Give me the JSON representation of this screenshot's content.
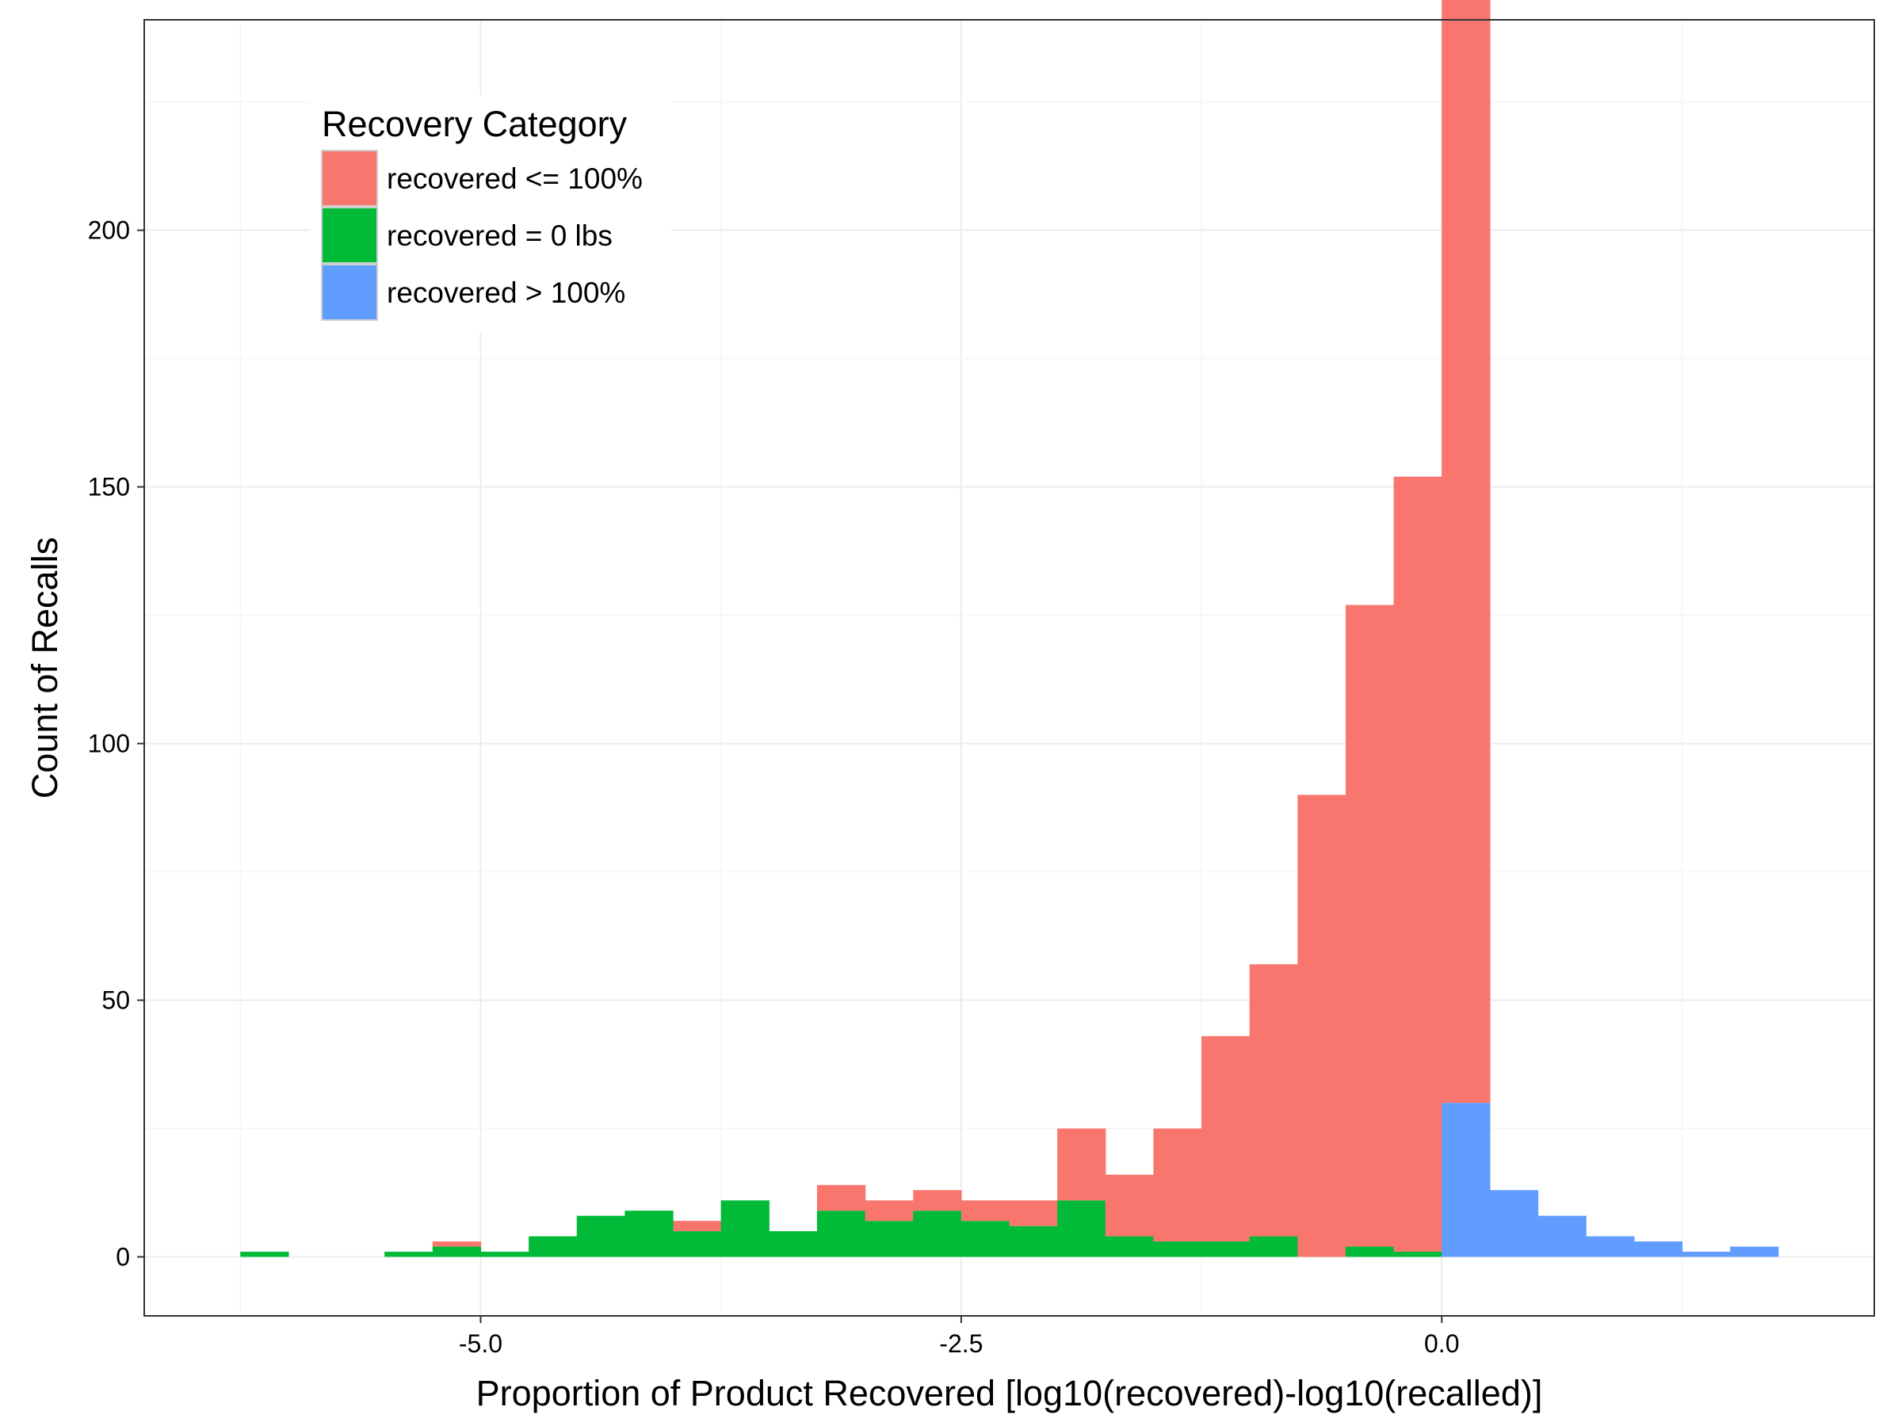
{
  "chart_data": {
    "type": "bar",
    "stacked": true,
    "histogram": true,
    "bin_width": 0.25,
    "xlabel": "Proportion of Product Recovered [log10(recovered)-log10(recalled)]",
    "ylabel": "Count of Recalls",
    "xlim": [
      -6.75,
      2.25
    ],
    "ylim": [
      -11.5,
      241
    ],
    "x_ticks": [
      -5.0,
      -2.5,
      0.0
    ],
    "x_tick_labels": [
      "-5.0",
      "-2.5",
      "0.0"
    ],
    "y_ticks": [
      0,
      50,
      100,
      150,
      200
    ],
    "y_tick_labels": [
      "0",
      "50",
      "100",
      "150",
      "200"
    ],
    "grid": true,
    "legend": {
      "title": "Recovery Category",
      "placement": "top-left"
    },
    "stack_order": [
      "recovered <= 100%",
      "recovered = 0 lbs",
      "recovered > 100%"
    ],
    "series": [
      {
        "name": "recovered <= 100%",
        "color": "#F8766D",
        "bins": [
          {
            "x0": -5.25,
            "value": 1
          },
          {
            "x0": -4.0,
            "value": 2
          },
          {
            "x0": -3.25,
            "value": 5
          },
          {
            "x0": -3.0,
            "value": 4
          },
          {
            "x0": -2.75,
            "value": 4
          },
          {
            "x0": -2.5,
            "value": 4
          },
          {
            "x0": -2.25,
            "value": 5
          },
          {
            "x0": -2.0,
            "value": 14
          },
          {
            "x0": -1.75,
            "value": 12
          },
          {
            "x0": -1.5,
            "value": 22
          },
          {
            "x0": -1.25,
            "value": 40
          },
          {
            "x0": -1.0,
            "value": 53
          },
          {
            "x0": -0.75,
            "value": 90
          },
          {
            "x0": -0.5,
            "value": 125
          },
          {
            "x0": -0.25,
            "value": 151
          },
          {
            "x0": 0.0,
            "value": 230
          }
        ]
      },
      {
        "name": "recovered = 0 lbs",
        "color": "#00BA38",
        "bins": [
          {
            "x0": -6.25,
            "value": 1
          },
          {
            "x0": -5.5,
            "value": 1
          },
          {
            "x0": -5.25,
            "value": 2
          },
          {
            "x0": -5.0,
            "value": 1
          },
          {
            "x0": -4.75,
            "value": 4
          },
          {
            "x0": -4.5,
            "value": 8
          },
          {
            "x0": -4.25,
            "value": 9
          },
          {
            "x0": -4.0,
            "value": 5
          },
          {
            "x0": -3.75,
            "value": 11
          },
          {
            "x0": -3.5,
            "value": 5
          },
          {
            "x0": -3.25,
            "value": 9
          },
          {
            "x0": -3.0,
            "value": 7
          },
          {
            "x0": -2.75,
            "value": 9
          },
          {
            "x0": -2.5,
            "value": 7
          },
          {
            "x0": -2.25,
            "value": 6
          },
          {
            "x0": -2.0,
            "value": 11
          },
          {
            "x0": -1.75,
            "value": 4
          },
          {
            "x0": -1.5,
            "value": 3
          },
          {
            "x0": -1.25,
            "value": 3
          },
          {
            "x0": -1.0,
            "value": 4
          },
          {
            "x0": -0.5,
            "value": 2
          },
          {
            "x0": -0.25,
            "value": 1
          }
        ]
      },
      {
        "name": "recovered > 100%",
        "color": "#619CFF",
        "bins": [
          {
            "x0": 0.0,
            "value": 30
          },
          {
            "x0": 0.25,
            "value": 13
          },
          {
            "x0": 0.5,
            "value": 8
          },
          {
            "x0": 0.75,
            "value": 4
          },
          {
            "x0": 1.0,
            "value": 3
          },
          {
            "x0": 1.25,
            "value": 1
          },
          {
            "x0": 1.5,
            "value": 2
          }
        ]
      }
    ]
  }
}
